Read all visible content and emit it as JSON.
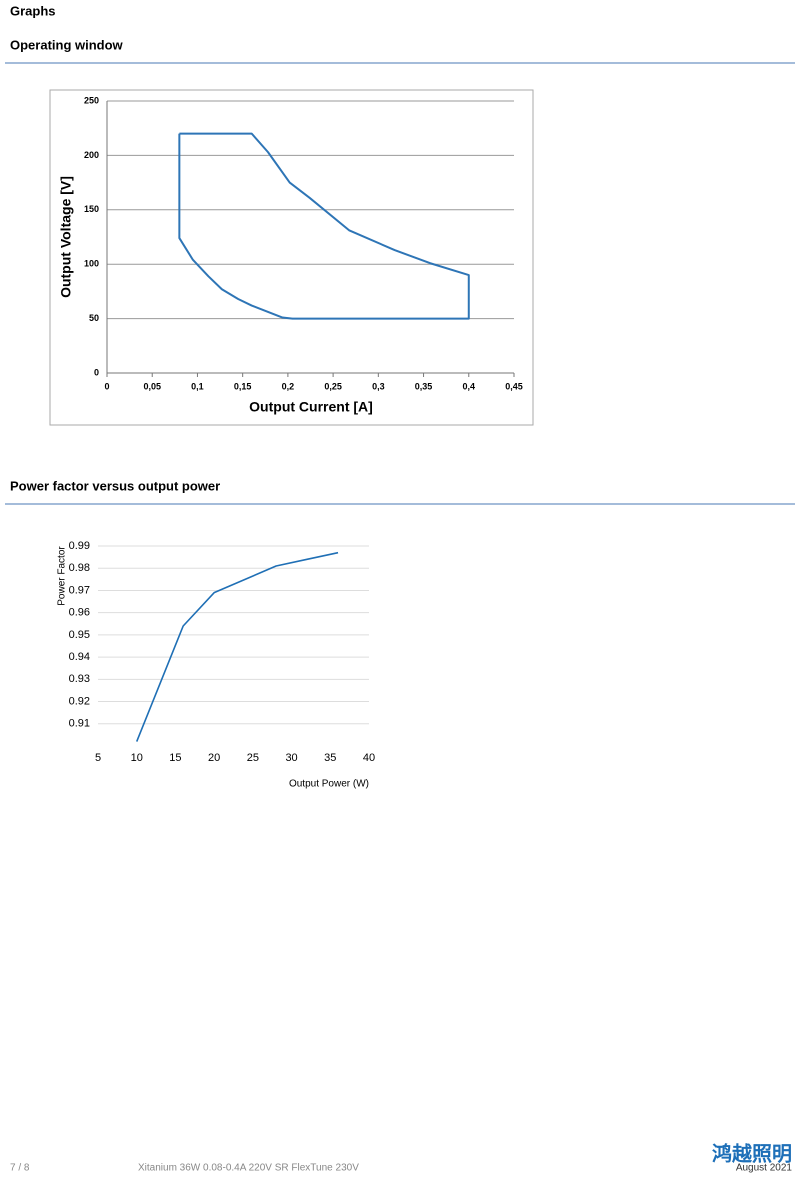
{
  "header": {
    "title": "Graphs"
  },
  "sections": [
    {
      "title": "Operating window"
    },
    {
      "title": "Power factor versus output power"
    }
  ],
  "chart_data": [
    {
      "type": "line",
      "xlabel": "Output Current [A]",
      "ylabel": "Output Voltage [V]",
      "color": "#2e75b6",
      "x": [
        0.08,
        0.16,
        0.178,
        0.202,
        0.224,
        0.268,
        0.318,
        0.357,
        0.4,
        0.4,
        0.205,
        0.194,
        0.16,
        0.145,
        0.127,
        0.112,
        0.095,
        0.08,
        0.08
      ],
      "values": [
        220,
        220,
        203,
        175,
        161,
        131,
        113,
        101,
        90,
        50,
        50,
        51,
        62,
        68,
        77,
        89,
        104,
        124,
        220
      ],
      "xlim": [
        0,
        0.45
      ],
      "ylim": [
        0,
        250
      ],
      "xticks": [
        0,
        {
          "value": 0.05,
          "label": "0,05"
        },
        {
          "value": 0.1,
          "label": "0,1"
        },
        {
          "value": 0.15,
          "label": "0,15"
        },
        {
          "value": 0.2,
          "label": "0,2"
        },
        {
          "value": 0.25,
          "label": "0,25"
        },
        {
          "value": 0.3,
          "label": "0,3"
        },
        {
          "value": 0.35,
          "label": "0,35"
        },
        {
          "value": 0.4,
          "label": "0,4"
        },
        {
          "value": 0.45,
          "label": "0,45"
        }
      ],
      "yticks": [
        0,
        50,
        100,
        150,
        200,
        250
      ],
      "grid": true
    },
    {
      "type": "line",
      "xlabel": "Output Power (W)",
      "ylabel": "Power Factor",
      "color": "#1f6fb5",
      "x": [
        10,
        16,
        20,
        22,
        28,
        32,
        36
      ],
      "values": [
        0.902,
        0.954,
        0.969,
        0.972,
        0.981,
        0.984,
        0.987
      ],
      "xlim": [
        5,
        40
      ],
      "ylim": [
        0.9,
        0.99
      ],
      "xticks": [
        5,
        10,
        15,
        20,
        25,
        30,
        35,
        40
      ],
      "yticks": [
        0.91,
        0.92,
        0.93,
        0.94,
        0.95,
        0.96,
        0.97,
        0.98,
        0.99
      ],
      "grid": true
    }
  ],
  "footer": {
    "page": "7 / 8",
    "product": "Xitanium 36W 0.08-0.4A 220V SR FlexTune 230V",
    "date": "August 2021",
    "watermark": "鸿越照明"
  }
}
